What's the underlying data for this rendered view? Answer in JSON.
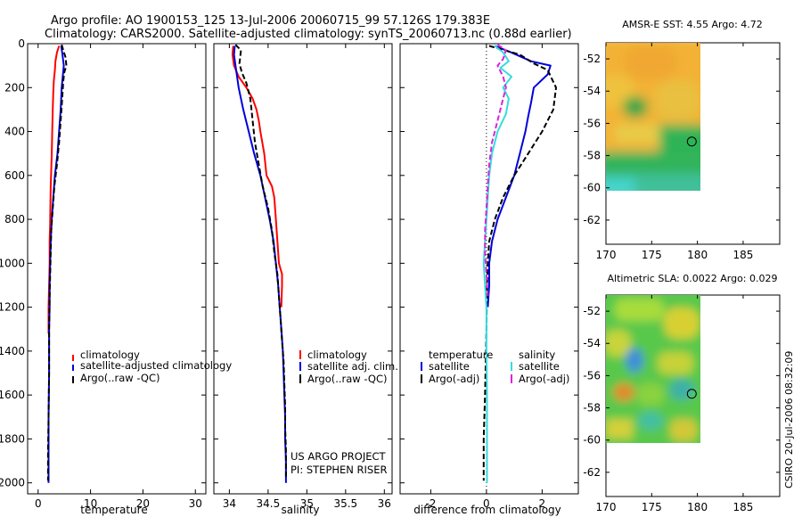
{
  "header": {
    "line1": "Argo profile: AO 1900153_125 13-Jul-2006 20060715_99 57.126S 179.383E",
    "line2": "Climatology: CARS2000. Satellite-adjusted climatology: synTS_20060713.nc (0.88d earlier)"
  },
  "side_label": "CSIRO 20-Jul-2006 08:32:09",
  "colors": {
    "climatology": "#ff0000",
    "satellite": "#0000dd",
    "argo": "#000000",
    "salinity_sat": "#33dddd",
    "salinity_argo": "#dd22dd"
  },
  "chart_data": [
    {
      "type": "line",
      "id": "temperature",
      "xlabel": "temperature",
      "xlim": [
        -2,
        32
      ],
      "ylim": [
        0,
        2050
      ],
      "y_inverted": true,
      "xticks": [
        0,
        10,
        20,
        30
      ],
      "yticks": [
        0,
        200,
        400,
        600,
        800,
        1000,
        1200,
        1400,
        1600,
        1800,
        2000
      ],
      "legend": [
        "climatology",
        "satellite-adjusted climatology",
        "Argo(..raw -QC)"
      ],
      "series": [
        {
          "name": "climatology",
          "style": "solid",
          "color": "#ff0000",
          "points": [
            [
              4.0,
              10
            ],
            [
              3.6,
              40
            ],
            [
              3.3,
              80
            ],
            [
              3.2,
              120
            ],
            [
              3.0,
              170
            ],
            [
              2.9,
              220
            ],
            [
              2.8,
              300
            ],
            [
              2.7,
              400
            ],
            [
              2.6,
              500
            ],
            [
              2.4,
              650
            ],
            [
              2.3,
              800
            ],
            [
              2.3,
              820
            ],
            [
              2.2,
              900
            ],
            [
              2.2,
              1000
            ],
            [
              2.1,
              1100
            ],
            [
              2.0,
              1200
            ],
            [
              2.0,
              1300
            ],
            [
              2.0,
              1320
            ]
          ]
        },
        {
          "name": "satellite-adjusted climatology",
          "style": "solid",
          "color": "#0000dd",
          "points": [
            [
              4.4,
              10
            ],
            [
              4.6,
              40
            ],
            [
              4.8,
              80
            ],
            [
              4.9,
              100
            ],
            [
              4.7,
              150
            ],
            [
              4.5,
              200
            ],
            [
              4.3,
              300
            ],
            [
              4.0,
              400
            ],
            [
              3.7,
              500
            ],
            [
              3.2,
              600
            ],
            [
              2.9,
              700
            ],
            [
              2.6,
              800
            ],
            [
              2.4,
              900
            ],
            [
              2.3,
              1000
            ],
            [
              2.2,
              1100
            ],
            [
              2.2,
              1200
            ],
            [
              2.1,
              1300
            ],
            [
              2.1,
              1500
            ],
            [
              2.0,
              1700
            ],
            [
              2.0,
              1850
            ],
            [
              2.0,
              2000
            ]
          ]
        },
        {
          "name": "Argo(..raw -QC)",
          "style": "dashed",
          "color": "#000000",
          "points": [
            [
              4.5,
              5
            ],
            [
              4.8,
              30
            ],
            [
              5.2,
              60
            ],
            [
              5.4,
              100
            ],
            [
              5.0,
              130
            ],
            [
              4.8,
              170
            ],
            [
              4.6,
              250
            ],
            [
              4.3,
              350
            ],
            [
              4.0,
              450
            ],
            [
              3.6,
              550
            ],
            [
              3.1,
              650
            ],
            [
              2.8,
              750
            ],
            [
              2.5,
              850
            ],
            [
              2.4,
              950
            ],
            [
              2.3,
              1050
            ],
            [
              2.2,
              1150
            ],
            [
              2.1,
              1300
            ],
            [
              2.1,
              1500
            ],
            [
              2.0,
              1700
            ],
            [
              1.9,
              1850
            ],
            [
              1.9,
              1990
            ]
          ]
        }
      ]
    },
    {
      "type": "line",
      "id": "salinity",
      "xlabel": "salinity",
      "xlim": [
        33.8,
        36.1
      ],
      "ylim": [
        0,
        2050
      ],
      "y_inverted": true,
      "xticks": [
        34,
        34.5,
        35,
        35.5,
        36
      ],
      "legend": [
        "climatology",
        "satellite adj. clim.",
        "Argo(..raw -QC)"
      ],
      "annotations": [
        "US ARGO PROJECT",
        "PI: STEPHEN RISER"
      ],
      "series": [
        {
          "name": "climatology",
          "style": "solid",
          "color": "#ff0000",
          "points": [
            [
              34.05,
              10
            ],
            [
              34.04,
              50
            ],
            [
              34.06,
              100
            ],
            [
              34.12,
              150
            ],
            [
              34.22,
              200
            ],
            [
              34.3,
              250
            ],
            [
              34.35,
              300
            ],
            [
              34.38,
              350
            ],
            [
              34.4,
              400
            ],
            [
              34.45,
              500
            ],
            [
              34.48,
              600
            ],
            [
              34.55,
              650
            ],
            [
              34.58,
              700
            ],
            [
              34.6,
              800
            ],
            [
              34.62,
              900
            ],
            [
              34.64,
              1000
            ],
            [
              34.68,
              1050
            ],
            [
              34.68,
              1100
            ],
            [
              34.67,
              1200
            ]
          ]
        },
        {
          "name": "satellite adj. clim.",
          "style": "solid",
          "color": "#0000dd",
          "points": [
            [
              34.07,
              10
            ],
            [
              34.06,
              50
            ],
            [
              34.08,
              100
            ],
            [
              34.12,
              200
            ],
            [
              34.18,
              300
            ],
            [
              34.25,
              400
            ],
            [
              34.32,
              500
            ],
            [
              34.4,
              600
            ],
            [
              34.46,
              700
            ],
            [
              34.52,
              800
            ],
            [
              34.57,
              900
            ],
            [
              34.6,
              1000
            ],
            [
              34.63,
              1100
            ],
            [
              34.65,
              1200
            ],
            [
              34.67,
              1300
            ],
            [
              34.69,
              1400
            ],
            [
              34.7,
              1500
            ],
            [
              34.71,
              1600
            ],
            [
              34.72,
              1700
            ],
            [
              34.72,
              1800
            ],
            [
              34.73,
              1900
            ],
            [
              34.73,
              2000
            ]
          ]
        },
        {
          "name": "Argo(..raw -QC)",
          "style": "dashed",
          "color": "#000000",
          "points": [
            [
              34.08,
              5
            ],
            [
              34.15,
              30
            ],
            [
              34.14,
              60
            ],
            [
              34.13,
              90
            ],
            [
              34.16,
              130
            ],
            [
              34.22,
              180
            ],
            [
              34.27,
              250
            ],
            [
              34.3,
              350
            ],
            [
              34.33,
              450
            ],
            [
              34.38,
              550
            ],
            [
              34.43,
              650
            ],
            [
              34.5,
              750
            ],
            [
              34.55,
              850
            ],
            [
              34.58,
              950
            ],
            [
              34.62,
              1050
            ],
            [
              34.64,
              1150
            ],
            [
              34.66,
              1250
            ],
            [
              34.68,
              1350
            ],
            [
              34.7,
              1450
            ],
            [
              34.71,
              1550
            ],
            [
              34.72,
              1650
            ],
            [
              34.72,
              1750
            ],
            [
              34.73,
              1850
            ],
            [
              34.73,
              1980
            ]
          ]
        }
      ]
    },
    {
      "type": "line",
      "id": "difference",
      "xlabel": "difference from climatology",
      "xlim": [
        -3.1,
        3.3
      ],
      "ylim": [
        0,
        2050
      ],
      "y_inverted": true,
      "xticks": [
        -2,
        0,
        2
      ],
      "legend_left_title": "temperature",
      "legend_right_title": "salinity",
      "legend": [
        "satellite",
        "Argo(-adj)",
        "satellite",
        "Argo(-adj)"
      ],
      "series": [
        {
          "name": "satellite",
          "group": "temperature",
          "style": "solid",
          "color": "#0000dd",
          "points": [
            [
              0.3,
              10
            ],
            [
              0.9,
              40
            ],
            [
              1.6,
              80
            ],
            [
              2.3,
              100
            ],
            [
              2.2,
              140
            ],
            [
              1.7,
              200
            ],
            [
              1.6,
              270
            ],
            [
              1.5,
              330
            ],
            [
              1.4,
              400
            ],
            [
              1.2,
              500
            ],
            [
              1.0,
              600
            ],
            [
              0.7,
              700
            ],
            [
              0.4,
              800
            ],
            [
              0.2,
              900
            ],
            [
              0.1,
              1000
            ],
            [
              0.1,
              1100
            ],
            [
              0.05,
              1200
            ]
          ]
        },
        {
          "name": "Argo(-adj)",
          "group": "temperature",
          "style": "dashed",
          "color": "#000000",
          "points": [
            [
              0.1,
              10
            ],
            [
              1.2,
              50
            ],
            [
              1.7,
              90
            ],
            [
              2.2,
              120
            ],
            [
              2.5,
              200
            ],
            [
              2.4,
              300
            ],
            [
              2.0,
              400
            ],
            [
              1.5,
              500
            ],
            [
              1.0,
              600
            ],
            [
              0.6,
              700
            ],
            [
              0.3,
              800
            ],
            [
              0.1,
              900
            ],
            [
              0.05,
              1000
            ],
            [
              0.02,
              1100
            ],
            [
              0.0,
              1300
            ],
            [
              -0.05,
              1600
            ],
            [
              -0.1,
              1800
            ],
            [
              -0.1,
              1990
            ]
          ]
        },
        {
          "name": "satellite",
          "group": "salinity",
          "style": "solid",
          "color": "#33dddd",
          "points": [
            [
              0.3,
              10
            ],
            [
              0.6,
              40
            ],
            [
              0.8,
              80
            ],
            [
              0.5,
              110
            ],
            [
              0.9,
              150
            ],
            [
              0.6,
              200
            ],
            [
              0.8,
              250
            ],
            [
              0.7,
              320
            ],
            [
              0.4,
              400
            ],
            [
              0.2,
              500
            ],
            [
              0.1,
              600
            ],
            [
              0.05,
              700
            ],
            [
              0.0,
              800
            ],
            [
              -0.05,
              900
            ],
            [
              -0.1,
              1000
            ],
            [
              -0.05,
              1100
            ],
            [
              0.0,
              1200
            ],
            [
              0.0,
              1400
            ],
            [
              0.02,
              1600
            ],
            [
              0.02,
              1800
            ],
            [
              0.02,
              2000
            ]
          ]
        },
        {
          "name": "Argo(-adj)",
          "group": "salinity",
          "style": "dashed",
          "color": "#dd22dd",
          "points": [
            [
              0.4,
              5
            ],
            [
              0.7,
              30
            ],
            [
              0.6,
              70
            ],
            [
              0.4,
              100
            ],
            [
              0.6,
              150
            ],
            [
              0.7,
              200
            ],
            [
              0.6,
              250
            ],
            [
              0.4,
              350
            ],
            [
              0.2,
              450
            ],
            [
              0.1,
              550
            ],
            [
              0.05,
              650
            ],
            [
              0.0,
              750
            ],
            [
              -0.05,
              850
            ],
            [
              -0.05,
              950
            ],
            [
              0.0,
              1050
            ],
            [
              0.05,
              1150
            ]
          ]
        }
      ]
    },
    {
      "type": "heatmap",
      "id": "sst-map",
      "title": "AMSR-E SST: 4.55 Argo: 4.72",
      "xlim": [
        170,
        189
      ],
      "ylim": [
        -63.5,
        -51
      ],
      "xticks": [
        170,
        175,
        180,
        185
      ],
      "yticks": [
        -52,
        -54,
        -56,
        -58,
        -60,
        -62
      ],
      "data_extent": {
        "lon": [
          170,
          180
        ],
        "lat": [
          -60,
          -51
        ]
      },
      "marker": {
        "lon": 179.383,
        "lat": -57.126
      }
    },
    {
      "type": "heatmap",
      "id": "sla-map",
      "title": "Altimetric SLA: 0.0022 Argo: 0.029",
      "xlim": [
        170,
        189
      ],
      "ylim": [
        -63.5,
        -51
      ],
      "xticks": [
        170,
        175,
        180,
        185
      ],
      "yticks": [
        -52,
        -54,
        -56,
        -58,
        -60,
        -62
      ],
      "data_extent": {
        "lon": [
          170,
          180
        ],
        "lat": [
          -60,
          -51
        ]
      },
      "marker": {
        "lon": 179.383,
        "lat": -57.126
      }
    }
  ]
}
